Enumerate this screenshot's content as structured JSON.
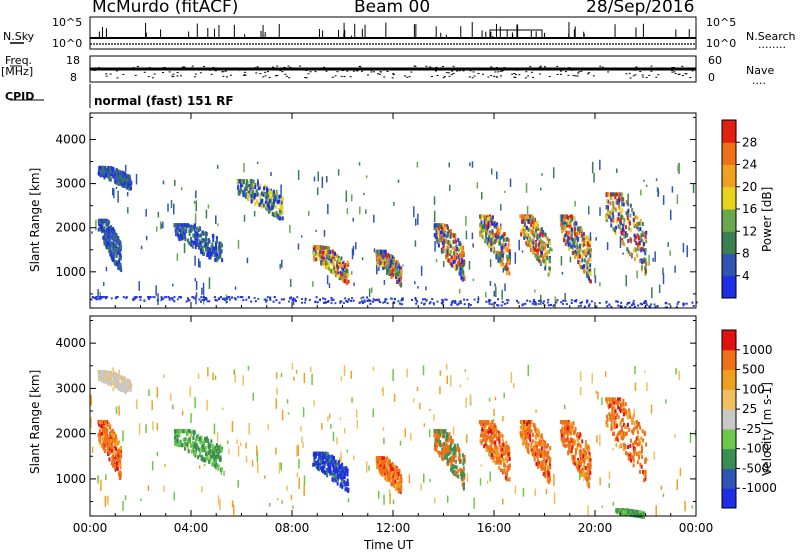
{
  "header": {
    "station": "McMurdo (fitACF)",
    "beam": "Beam 00",
    "date": "28/Sep/2016"
  },
  "top_panels": {
    "nsky_label": "N.Sky",
    "nsearch_label": "N.Search",
    "nsearch_dots": "........",
    "freq_label": "Freq.",
    "freq_unit": "[MHz]",
    "nave_label": "Nave",
    "nave_dots": "....",
    "cpid_label": "CPID",
    "cpid_text": "normal (fast) 151 RF",
    "noise_left_ticks": [
      "10^5",
      "10^0"
    ],
    "noise_right_ticks": [
      "10^5",
      "10^0"
    ],
    "freq_ticks": [
      "18",
      "8"
    ],
    "nave_ticks": [
      "60",
      "0"
    ]
  },
  "time_axis": {
    "label": "Time UT",
    "ticks": [
      "00:00",
      "04:00",
      "08:00",
      "12:00",
      "16:00",
      "20:00",
      "00:00"
    ]
  },
  "chart_data": [
    {
      "type": "heatmap",
      "panel": "power",
      "ylabel": "Slant Range [km]",
      "y_ticks": [
        1000,
        2000,
        3000,
        4000
      ],
      "ylim": [
        180,
        4600
      ],
      "xlim_hours": [
        0,
        24
      ],
      "colorbar": {
        "title": "Power [dB]",
        "ticks": [
          "4",
          "8",
          "12",
          "16",
          "20",
          "24",
          "28"
        ],
        "colors": [
          "#1e2ee6",
          "#2f55b4",
          "#3a7f52",
          "#6aa84f",
          "#e8d21c",
          "#f0a020",
          "#f07018",
          "#e02010"
        ]
      },
      "echo_regions": [
        {
          "t_start": 0.3,
          "t_end": 1.6,
          "r_low": 2900,
          "r_high": 3400,
          "level": "low"
        },
        {
          "t_start": 0.3,
          "t_end": 1.2,
          "r_low": 1000,
          "r_high": 2200,
          "level": "low"
        },
        {
          "t_start": 3.3,
          "t_end": 5.2,
          "r_low": 1200,
          "r_high": 2100,
          "level": "low"
        },
        {
          "t_start": 5.8,
          "t_end": 7.6,
          "r_low": 2200,
          "r_high": 3100,
          "level": "mixed"
        },
        {
          "t_start": 8.8,
          "t_end": 10.2,
          "r_low": 750,
          "r_high": 1600,
          "level": "high"
        },
        {
          "t_start": 11.3,
          "t_end": 12.3,
          "r_low": 700,
          "r_high": 1500,
          "level": "high"
        },
        {
          "t_start": 13.6,
          "t_end": 14.8,
          "r_low": 800,
          "r_high": 2100,
          "level": "high"
        },
        {
          "t_start": 15.4,
          "t_end": 16.6,
          "r_low": 900,
          "r_high": 2300,
          "level": "high"
        },
        {
          "t_start": 17.0,
          "t_end": 18.2,
          "r_low": 900,
          "r_high": 2300,
          "level": "high"
        },
        {
          "t_start": 18.6,
          "t_end": 19.8,
          "r_low": 800,
          "r_high": 2300,
          "level": "high"
        },
        {
          "t_start": 20.4,
          "t_end": 22.0,
          "r_low": 900,
          "r_high": 2800,
          "level": "high"
        },
        {
          "t_start": 0,
          "t_end": 24,
          "r_low": 200,
          "r_high": 450,
          "level": "ground"
        }
      ]
    },
    {
      "type": "heatmap",
      "panel": "velocity",
      "ylabel": "Slant Range [km]",
      "y_ticks": [
        1000,
        2000,
        3000,
        4000
      ],
      "ylim": [
        180,
        4600
      ],
      "xlim_hours": [
        0,
        24
      ],
      "colorbar": {
        "title": "Velocity [m s-1]",
        "ticks": [
          "1000",
          "500",
          "100",
          "25",
          "-25",
          "-100",
          "-500",
          "-1000"
        ],
        "colors": [
          "#1e2ee6",
          "#2f55b4",
          "#3a8f50",
          "#6cc84a",
          "#c8c8c8",
          "#f0c060",
          "#f0a020",
          "#f07018",
          "#e01010"
        ]
      },
      "echo_regions": [
        {
          "t_start": 0.3,
          "t_end": 1.6,
          "r_low": 2900,
          "r_high": 3400,
          "level": "grey"
        },
        {
          "t_start": 0.3,
          "t_end": 1.2,
          "r_low": 1000,
          "r_high": 2300,
          "level": "orange"
        },
        {
          "t_start": 3.3,
          "t_end": 5.2,
          "r_low": 1200,
          "r_high": 2100,
          "level": "green"
        },
        {
          "t_start": 8.8,
          "t_end": 10.2,
          "r_low": 750,
          "r_high": 1600,
          "level": "blue"
        },
        {
          "t_start": 11.3,
          "t_end": 12.3,
          "r_low": 700,
          "r_high": 1500,
          "level": "orange"
        },
        {
          "t_start": 13.6,
          "t_end": 14.8,
          "r_low": 800,
          "r_high": 2100,
          "level": "green-orange"
        },
        {
          "t_start": 15.4,
          "t_end": 16.6,
          "r_low": 900,
          "r_high": 2300,
          "level": "orange"
        },
        {
          "t_start": 17.0,
          "t_end": 18.2,
          "r_low": 900,
          "r_high": 2300,
          "level": "orange"
        },
        {
          "t_start": 18.6,
          "t_end": 19.8,
          "r_low": 800,
          "r_high": 2300,
          "level": "orange"
        },
        {
          "t_start": 20.4,
          "t_end": 22.0,
          "r_low": 900,
          "r_high": 2800,
          "level": "orange"
        },
        {
          "t_start": 20.8,
          "t_end": 21.9,
          "r_low": 200,
          "r_high": 350,
          "level": "green"
        }
      ]
    }
  ]
}
